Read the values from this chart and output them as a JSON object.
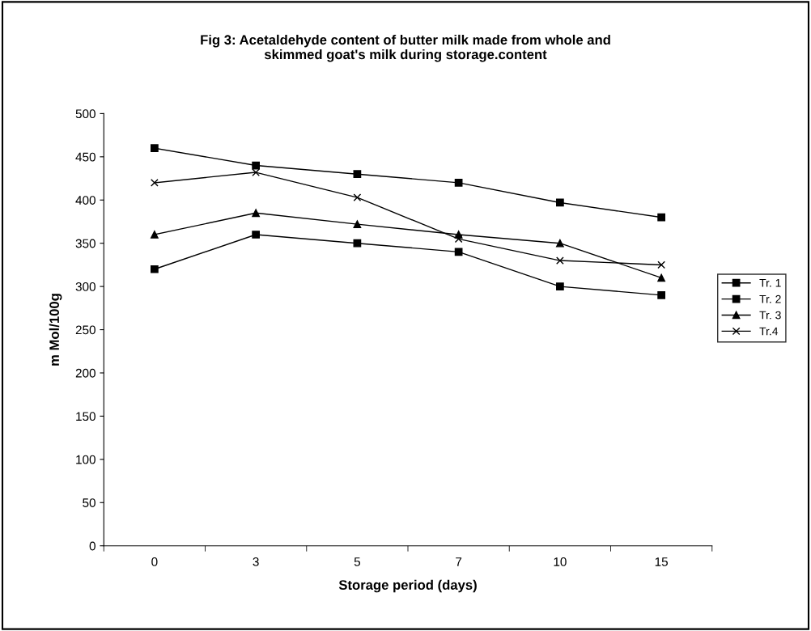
{
  "chart_data": {
    "type": "line",
    "title": "Fig 3: Acetaldehyde content of butter milk made from whole and\nskimmed goat's milk during storage.content",
    "xlabel": "Storage period (days)",
    "ylabel": "m Mol/100g",
    "categories": [
      "0",
      "3",
      "5",
      "7",
      "10",
      "15"
    ],
    "series": [
      {
        "name": "Tr. 1",
        "color": "#000000",
        "marker": "square",
        "values": [
          320,
          360,
          350,
          340,
          300,
          290
        ]
      },
      {
        "name": "Tr. 2",
        "color": "#000000",
        "marker": "square",
        "values": [
          460,
          440,
          430,
          420,
          397,
          380
        ]
      },
      {
        "name": "Tr. 3",
        "color": "#000000",
        "marker": "triangle",
        "values": [
          360,
          385,
          372,
          360,
          350,
          310
        ]
      },
      {
        "name": "Tr.4",
        "color": "#000000",
        "marker": "cross",
        "values": [
          420,
          432,
          403,
          355,
          330,
          325
        ]
      }
    ],
    "ylim": [
      0,
      500
    ],
    "yticks": [
      0,
      50,
      100,
      150,
      200,
      250,
      300,
      350,
      400,
      450,
      500
    ],
    "grid": false,
    "legend": "right",
    "line_style": "solid"
  }
}
